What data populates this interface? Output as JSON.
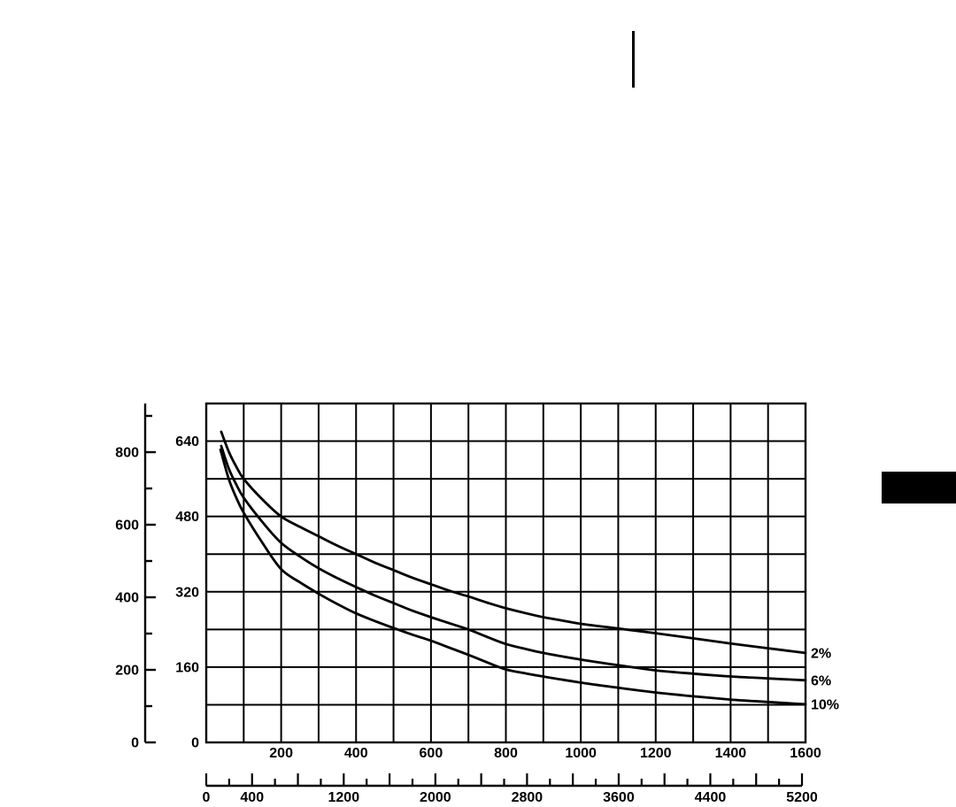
{
  "colors": {
    "ink": "#000000",
    "background": "#ffffff"
  },
  "decorations": {
    "top_divider_color": "#000000",
    "section_marker_color": "#000000"
  },
  "chart_data": {
    "type": "line",
    "title": "",
    "xlabel": "",
    "ylabel": "",
    "grid": true,
    "legend_position": "right of curve endpoints",
    "x_axis": {
      "range": [
        0,
        1600
      ],
      "grid_step": 100,
      "tick_labels": [
        200,
        400,
        600,
        800,
        1000,
        1200,
        1400,
        1600
      ]
    },
    "x_axis_outer_ruler": {
      "range": [
        0,
        5200
      ],
      "minor_tick_step": 200,
      "major_tick_step": 400,
      "labels": [
        0,
        400,
        1200,
        2000,
        2800,
        3600,
        4400,
        5200
      ]
    },
    "y_axis": {
      "range": [
        0,
        720
      ],
      "grid_step": 80,
      "tick_labels": [
        0,
        160,
        320,
        480,
        640
      ]
    },
    "y_axis_outer": {
      "range": [
        0,
        900
      ],
      "tick_step": 100,
      "labels": [
        0,
        200,
        400,
        600,
        800
      ]
    },
    "series": [
      {
        "name": "2%",
        "points": [
          [
            40,
            660
          ],
          [
            60,
            618
          ],
          [
            80,
            586
          ],
          [
            100,
            560
          ],
          [
            150,
            516
          ],
          [
            200,
            480
          ],
          [
            250,
            458
          ],
          [
            300,
            438
          ],
          [
            350,
            418
          ],
          [
            400,
            400
          ],
          [
            450,
            382
          ],
          [
            500,
            366
          ],
          [
            550,
            350
          ],
          [
            600,
            336
          ],
          [
            650,
            322
          ],
          [
            700,
            310
          ],
          [
            750,
            297
          ],
          [
            800,
            285
          ],
          [
            850,
            275
          ],
          [
            900,
            266
          ],
          [
            950,
            259
          ],
          [
            1000,
            252
          ],
          [
            1100,
            242
          ],
          [
            1200,
            232
          ],
          [
            1300,
            221
          ],
          [
            1400,
            210
          ],
          [
            1500,
            200
          ],
          [
            1600,
            190
          ]
        ]
      },
      {
        "name": "6%",
        "points": [
          [
            40,
            630
          ],
          [
            60,
            582
          ],
          [
            80,
            548
          ],
          [
            100,
            520
          ],
          [
            150,
            468
          ],
          [
            200,
            424
          ],
          [
            250,
            395
          ],
          [
            300,
            370
          ],
          [
            350,
            349
          ],
          [
            400,
            330
          ],
          [
            450,
            312
          ],
          [
            500,
            296
          ],
          [
            550,
            280
          ],
          [
            600,
            266
          ],
          [
            650,
            253
          ],
          [
            700,
            240
          ],
          [
            750,
            224
          ],
          [
            800,
            209
          ],
          [
            850,
            199
          ],
          [
            900,
            190
          ],
          [
            1000,
            176
          ],
          [
            1100,
            164
          ],
          [
            1200,
            153
          ],
          [
            1300,
            146
          ],
          [
            1400,
            140
          ],
          [
            1500,
            136
          ],
          [
            1600,
            132
          ]
        ]
      },
      {
        "name": "10%",
        "points": [
          [
            38,
            622
          ],
          [
            60,
            560
          ],
          [
            80,
            520
          ],
          [
            100,
            488
          ],
          [
            150,
            424
          ],
          [
            200,
            368
          ],
          [
            250,
            340
          ],
          [
            300,
            316
          ],
          [
            350,
            294
          ],
          [
            400,
            274
          ],
          [
            450,
            258
          ],
          [
            500,
            243
          ],
          [
            550,
            229
          ],
          [
            600,
            216
          ],
          [
            650,
            201
          ],
          [
            700,
            186
          ],
          [
            750,
            170
          ],
          [
            800,
            155
          ],
          [
            850,
            147
          ],
          [
            900,
            140
          ],
          [
            1000,
            127
          ],
          [
            1100,
            116
          ],
          [
            1200,
            106
          ],
          [
            1300,
            98
          ],
          [
            1400,
            91
          ],
          [
            1500,
            86
          ],
          [
            1600,
            81
          ]
        ]
      }
    ]
  }
}
